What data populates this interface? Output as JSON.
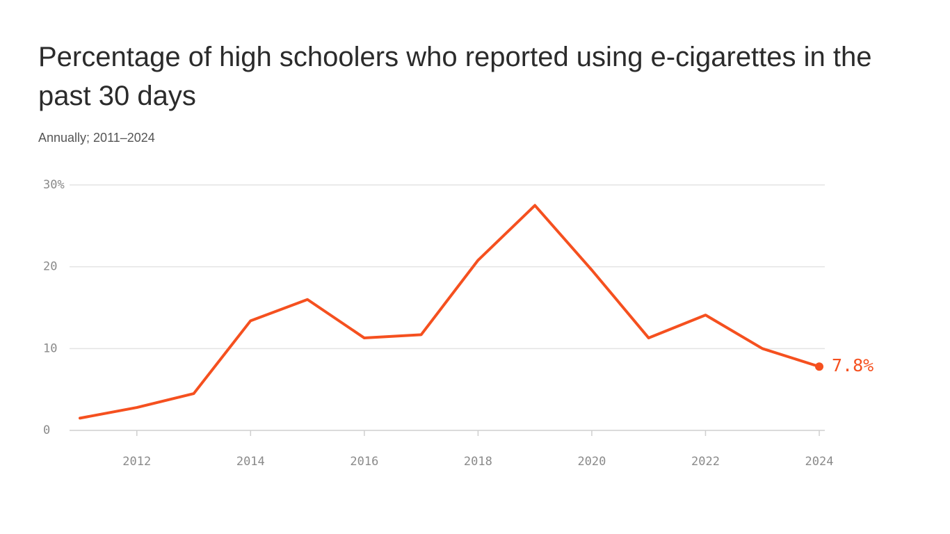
{
  "chart_data": {
    "type": "line",
    "title": "Percentage of high schoolers who reported using e-cigarettes in the past 30 days",
    "subtitle": "Annually; 2011–2024",
    "x": [
      2011,
      2012,
      2013,
      2014,
      2015,
      2016,
      2017,
      2018,
      2019,
      2020,
      2021,
      2022,
      2023,
      2024
    ],
    "values": [
      1.5,
      2.8,
      4.5,
      13.4,
      16.0,
      11.3,
      11.7,
      20.8,
      27.5,
      19.6,
      11.3,
      14.1,
      10.0,
      7.8
    ],
    "value_labels": [
      null,
      null,
      null,
      null,
      null,
      null,
      null,
      null,
      null,
      null,
      null,
      null,
      null,
      "7.8%"
    ],
    "color": "#f5501f",
    "xlim": [
      2011,
      2024
    ],
    "xticks": [
      2012,
      2014,
      2016,
      2018,
      2020,
      2022,
      2024
    ],
    "ylim": [
      0,
      30
    ],
    "yticks": [
      0,
      10,
      20,
      {
        "value": 30,
        "label": "30%"
      }
    ],
    "grid": true
  }
}
